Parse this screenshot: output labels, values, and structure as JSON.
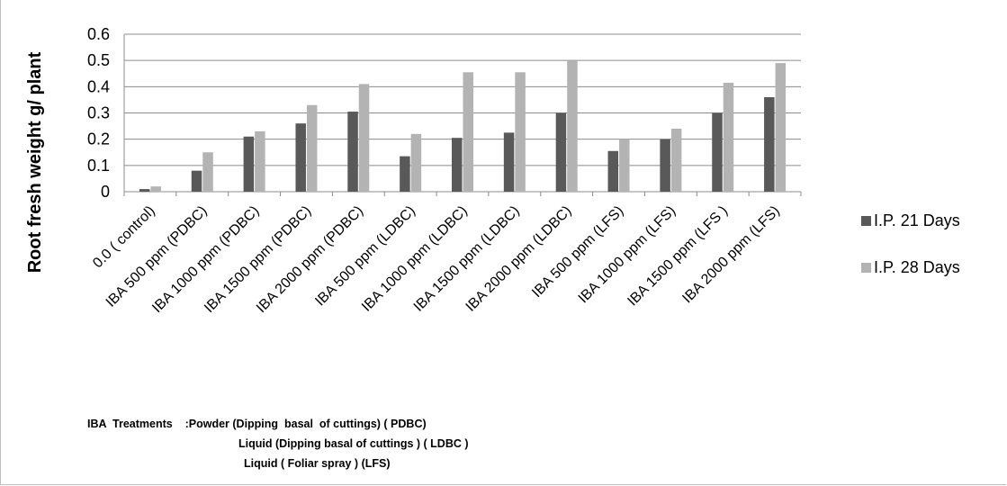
{
  "chart_data": {
    "type": "bar",
    "ylabel": "Root fresh weight g/ plant",
    "ylim": [
      0,
      0.6
    ],
    "yticks": [
      "0",
      "0.1",
      "0.2",
      "0.3",
      "0.4",
      "0.5",
      "0.6"
    ],
    "categories": [
      "0.0 ( control)",
      "IBA 500 ppm  (PDBC)",
      "IBA 1000 ppm (PDBC)",
      "IBA 1500 ppm  (PDBC)",
      "IBA 2000 ppm (PDBC)",
      "IBA 500 ppm  (LDBC)",
      "IBA 1000 ppm (LDBC)",
      "IBA 1500 ppm (LDBC)",
      "IBA 2000 ppm (LDBC)",
      "IBA 500   ppm (LFS)",
      "IBA 1000 ppm (LFS)",
      "IBA 1500 ppm (LFS )",
      "IBA 2000 ppm (LFS)"
    ],
    "series": [
      {
        "name": "I.P. 21 Days",
        "color": "#595959",
        "values": [
          0.01,
          0.08,
          0.21,
          0.26,
          0.305,
          0.135,
          0.205,
          0.225,
          0.3,
          0.155,
          0.2,
          0.3,
          0.36
        ]
      },
      {
        "name": "I.P. 28 Days",
        "color": "#b3b3b3",
        "values": [
          0.02,
          0.15,
          0.23,
          0.33,
          0.41,
          0.22,
          0.455,
          0.455,
          0.5,
          0.2,
          0.24,
          0.415,
          0.49
        ]
      }
    ],
    "grid": true,
    "legend_position": "right"
  },
  "notes": {
    "line1": "IBA  Treatments    :Powder (Dipping  basal  of cuttings) ( PDBC)",
    "line2": "Liquid (Dipping basal of cuttings ) ( LDBC )",
    "line3": "Liquid ( Foliar spray ) (LFS)"
  }
}
